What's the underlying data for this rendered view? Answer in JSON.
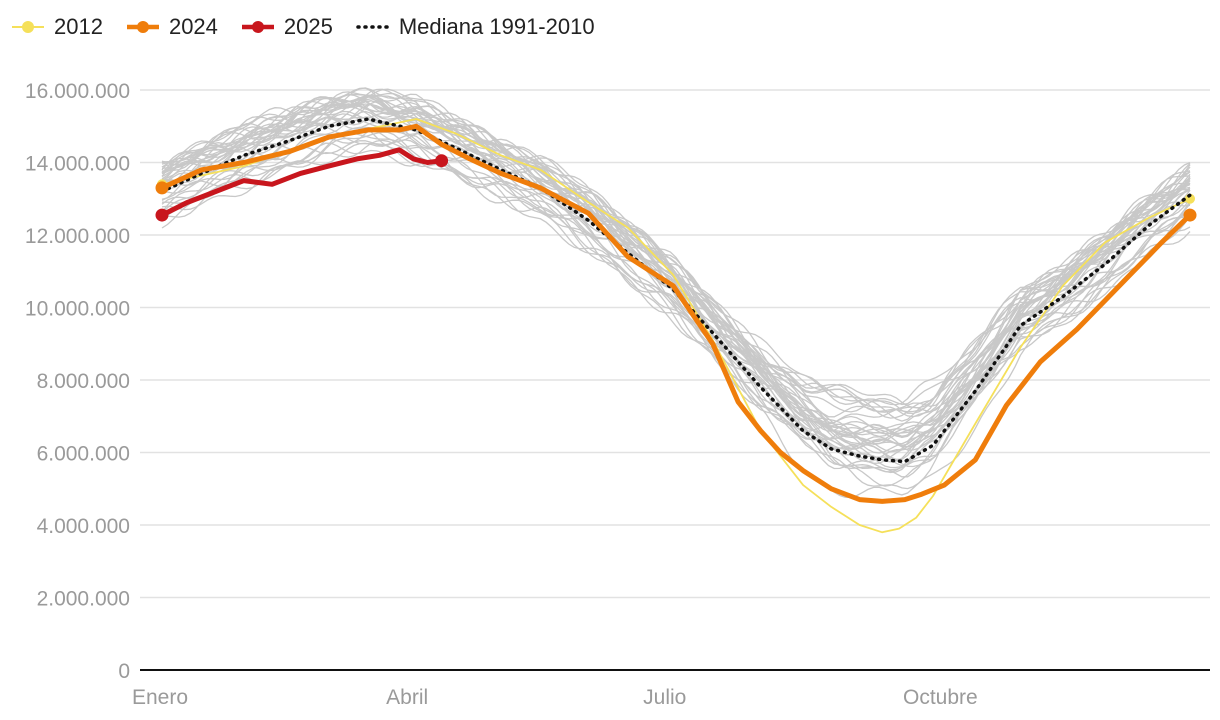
{
  "chart_data": {
    "type": "line",
    "title": "",
    "xlabel": "",
    "ylabel": "",
    "x_tick_labels": [
      "Enero",
      "Abril",
      "Julio",
      "Octubre"
    ],
    "x_tick_days": [
      1,
      91,
      182,
      274
    ],
    "x_range_days": [
      1,
      365
    ],
    "ylim": [
      0,
      16000000
    ],
    "y_ticks": [
      0,
      2000000,
      4000000,
      6000000,
      8000000,
      10000000,
      12000000,
      14000000,
      16000000
    ],
    "y_tick_labels": [
      "0",
      "2.000.000",
      "4.000.000",
      "6.000.000",
      "8.000.000",
      "10.000.000",
      "12.000.000",
      "14.000.000",
      "16.000.000"
    ],
    "grid": true,
    "legend_position": "top-left",
    "background_series_color": "#c8c8c8",
    "series": [
      {
        "name": "2012",
        "color": "#f5e05a",
        "points": [
          [
            1,
            13400000
          ],
          [
            30,
            13900000
          ],
          [
            60,
            14700000
          ],
          [
            91,
            15200000
          ],
          [
            105,
            14800000
          ],
          [
            121,
            14200000
          ],
          [
            135,
            13800000
          ],
          [
            152,
            12900000
          ],
          [
            166,
            12200000
          ],
          [
            182,
            10900000
          ],
          [
            196,
            9100000
          ],
          [
            213,
            6600000
          ],
          [
            228,
            5100000
          ],
          [
            238,
            4500000
          ],
          [
            248,
            4000000
          ],
          [
            256,
            3800000
          ],
          [
            262,
            3900000
          ],
          [
            268,
            4200000
          ],
          [
            274,
            4800000
          ],
          [
            289,
            6800000
          ],
          [
            305,
            8900000
          ],
          [
            320,
            10600000
          ],
          [
            335,
            11800000
          ],
          [
            351,
            12500000
          ],
          [
            365,
            13000000
          ]
        ]
      },
      {
        "name": "2024",
        "color": "#ef7d0b",
        "points": [
          [
            1,
            13300000
          ],
          [
            15,
            13800000
          ],
          [
            30,
            14000000
          ],
          [
            46,
            14300000
          ],
          [
            60,
            14700000
          ],
          [
            74,
            14900000
          ],
          [
            85,
            14900000
          ],
          [
            91,
            15000000
          ],
          [
            100,
            14500000
          ],
          [
            110,
            14100000
          ],
          [
            121,
            13700000
          ],
          [
            135,
            13300000
          ],
          [
            152,
            12600000
          ],
          [
            166,
            11400000
          ],
          [
            182,
            10600000
          ],
          [
            196,
            9000000
          ],
          [
            205,
            7400000
          ],
          [
            213,
            6600000
          ],
          [
            220,
            6000000
          ],
          [
            228,
            5500000
          ],
          [
            238,
            5000000
          ],
          [
            248,
            4700000
          ],
          [
            256,
            4650000
          ],
          [
            264,
            4700000
          ],
          [
            270,
            4850000
          ],
          [
            278,
            5100000
          ],
          [
            289,
            5800000
          ],
          [
            300,
            7300000
          ],
          [
            312,
            8500000
          ],
          [
            325,
            9400000
          ],
          [
            335,
            10200000
          ],
          [
            345,
            11000000
          ],
          [
            355,
            11800000
          ],
          [
            365,
            12550000
          ]
        ]
      },
      {
        "name": "2025",
        "color": "#c8161d",
        "points": [
          [
            1,
            12550000
          ],
          [
            10,
            12900000
          ],
          [
            20,
            13200000
          ],
          [
            30,
            13500000
          ],
          [
            40,
            13400000
          ],
          [
            50,
            13700000
          ],
          [
            60,
            13900000
          ],
          [
            70,
            14100000
          ],
          [
            78,
            14200000
          ],
          [
            85,
            14350000
          ],
          [
            90,
            14100000
          ],
          [
            95,
            14000000
          ],
          [
            100,
            14050000
          ]
        ]
      },
      {
        "name": "Mediana 1991-2010",
        "color": "#111111",
        "dash": true,
        "points": [
          [
            1,
            13200000
          ],
          [
            15,
            13700000
          ],
          [
            30,
            14200000
          ],
          [
            46,
            14600000
          ],
          [
            60,
            15000000
          ],
          [
            74,
            15200000
          ],
          [
            91,
            14900000
          ],
          [
            105,
            14400000
          ],
          [
            121,
            13800000
          ],
          [
            135,
            13300000
          ],
          [
            152,
            12400000
          ],
          [
            166,
            11500000
          ],
          [
            182,
            10500000
          ],
          [
            196,
            9300000
          ],
          [
            213,
            7800000
          ],
          [
            228,
            6600000
          ],
          [
            238,
            6100000
          ],
          [
            248,
            5900000
          ],
          [
            256,
            5800000
          ],
          [
            264,
            5750000
          ],
          [
            274,
            6200000
          ],
          [
            289,
            7700000
          ],
          [
            305,
            9500000
          ],
          [
            320,
            10300000
          ],
          [
            335,
            11200000
          ],
          [
            351,
            12300000
          ],
          [
            365,
            13100000
          ]
        ]
      }
    ]
  }
}
